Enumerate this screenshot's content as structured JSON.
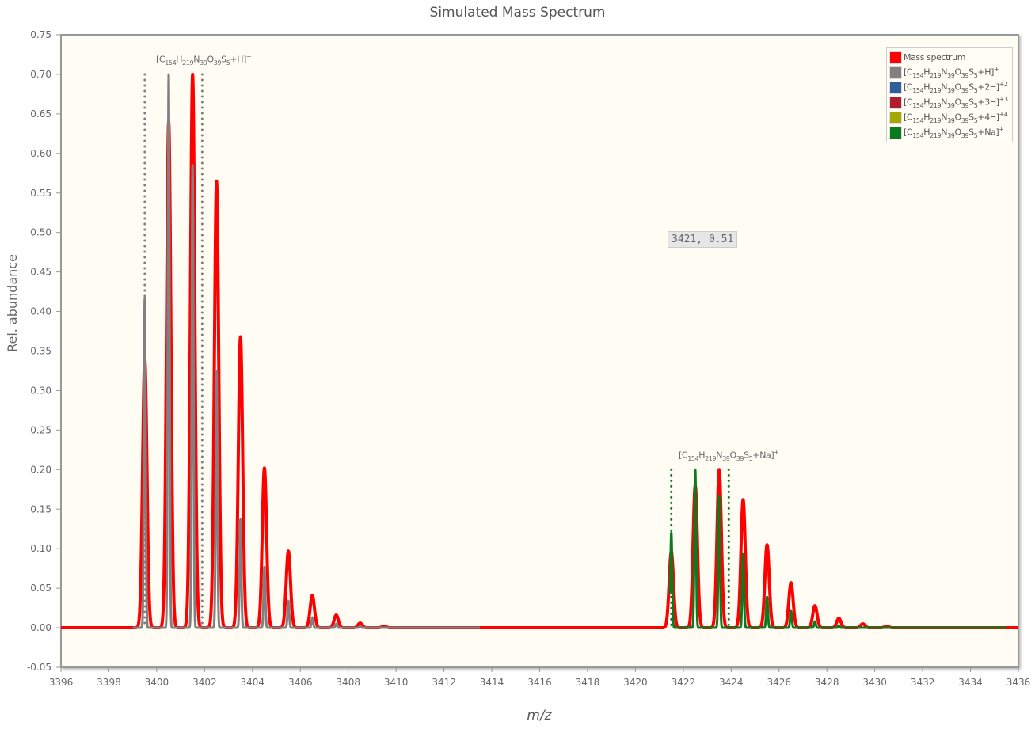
{
  "chart_data": {
    "type": "line",
    "title": "Simulated Mass Spectrum",
    "xlabel": "m/z",
    "ylabel": "Rel. abundance",
    "xlim": [
      3396,
      3436
    ],
    "ylim": [
      -0.05,
      0.75
    ],
    "x_ticks": [
      "3396",
      "3398",
      "3400",
      "3402",
      "3404",
      "3406",
      "3408",
      "3410",
      "3412",
      "3414",
      "3416",
      "3418",
      "3420",
      "3422",
      "3424",
      "3426",
      "3428",
      "3430",
      "3432",
      "3434",
      "3436"
    ],
    "y_ticks": [
      "0.75",
      "0.70",
      "0.65",
      "0.60",
      "0.55",
      "0.50",
      "0.45",
      "0.40",
      "0.35",
      "0.30",
      "0.25",
      "0.20",
      "0.15",
      "0.10",
      "0.05",
      "0.00",
      "-0.05"
    ],
    "grid": false,
    "legend_position": "top-right",
    "series": [
      {
        "name": "Mass spectrum",
        "color": "#ff0000",
        "peaks_x": [
          3399.5,
          3400.5,
          3401.5,
          3402.5,
          3403.5,
          3404.5,
          3405.5,
          3406.5,
          3407.5,
          3408.5,
          3409.5,
          3421.5,
          3422.5,
          3423.5,
          3424.5,
          3425.5,
          3426.5,
          3427.5,
          3428.5,
          3429.5,
          3430.5
        ],
        "peaks_y": [
          0.34,
          0.64,
          0.7,
          0.565,
          0.368,
          0.202,
          0.097,
          0.041,
          0.016,
          0.006,
          0.002,
          0.096,
          0.18,
          0.2,
          0.162,
          0.105,
          0.057,
          0.028,
          0.012,
          0.005,
          0.002
        ]
      },
      {
        "name": "[C154H219N39O39S5+H]+",
        "color": "#808080",
        "peaks_x": [
          3399.5,
          3400.5,
          3401.5,
          3402.5,
          3403.5,
          3404.5,
          3405.5,
          3406.5,
          3407.5,
          3408.5
        ],
        "peaks_y": [
          0.417,
          0.7,
          0.585,
          0.325,
          0.137,
          0.077,
          0.034,
          0.013,
          0.005,
          0.002
        ]
      },
      {
        "name": "[C154H219N39O39S5+2H]+2",
        "color": "#2f5f9a",
        "peaks_x": [],
        "peaks_y": []
      },
      {
        "name": "[C154H219N39O39S5+3H]+3",
        "color": "#b01c2e",
        "peaks_x": [],
        "peaks_y": []
      },
      {
        "name": "[C154H219N39O39S5+4H]+4",
        "color": "#a5a800",
        "peaks_x": [],
        "peaks_y": []
      },
      {
        "name": "[C154H219N39O39S5+Na]+",
        "color": "#0a7a1e",
        "peaks_x": [
          3421.5,
          3422.5,
          3423.5,
          3424.5,
          3425.5,
          3426.5,
          3427.5,
          3428.5
        ],
        "peaks_y": [
          0.12,
          0.2,
          0.166,
          0.093,
          0.039,
          0.021,
          0.008,
          0.003
        ]
      }
    ],
    "annotations": [
      {
        "text": "[C154H219N39O39S5+H]+",
        "x_range": [
          3399.5,
          3401.9
        ],
        "color": "#808080"
      },
      {
        "text": "[C154H219N39O39S5+Na]+",
        "x_range": [
          3421.5,
          3423.9
        ],
        "color": "#0a7a1e"
      }
    ],
    "tooltip": "3421, 0.51"
  },
  "legend": [
    {
      "label": "Mass spectrum",
      "color": "#ff0000",
      "formula": null
    },
    {
      "label": "[C154H219N39O39S5+H]+",
      "color": "#808080",
      "formula": {
        "ion": "+H",
        "charge": "+"
      }
    },
    {
      "label": "[C154H219N39O39S5+2H]+2",
      "color": "#2f5f9a",
      "formula": {
        "ion": "+2H",
        "charge": "+2"
      }
    },
    {
      "label": "[C154H219N39O39S5+3H]+3",
      "color": "#b01c2e",
      "formula": {
        "ion": "+3H",
        "charge": "+3"
      }
    },
    {
      "label": "[C154H219N39O39S5+4H]+4",
      "color": "#a5a800",
      "formula": {
        "ion": "+4H",
        "charge": "+4"
      }
    },
    {
      "label": "[C154H219N39O39S5+Na]+",
      "color": "#0a7a1e",
      "formula": {
        "ion": "+Na",
        "charge": "+"
      }
    }
  ],
  "formula_parts": {
    "C": "154",
    "H": "219",
    "N": "39",
    "O": "39",
    "S": "5"
  }
}
